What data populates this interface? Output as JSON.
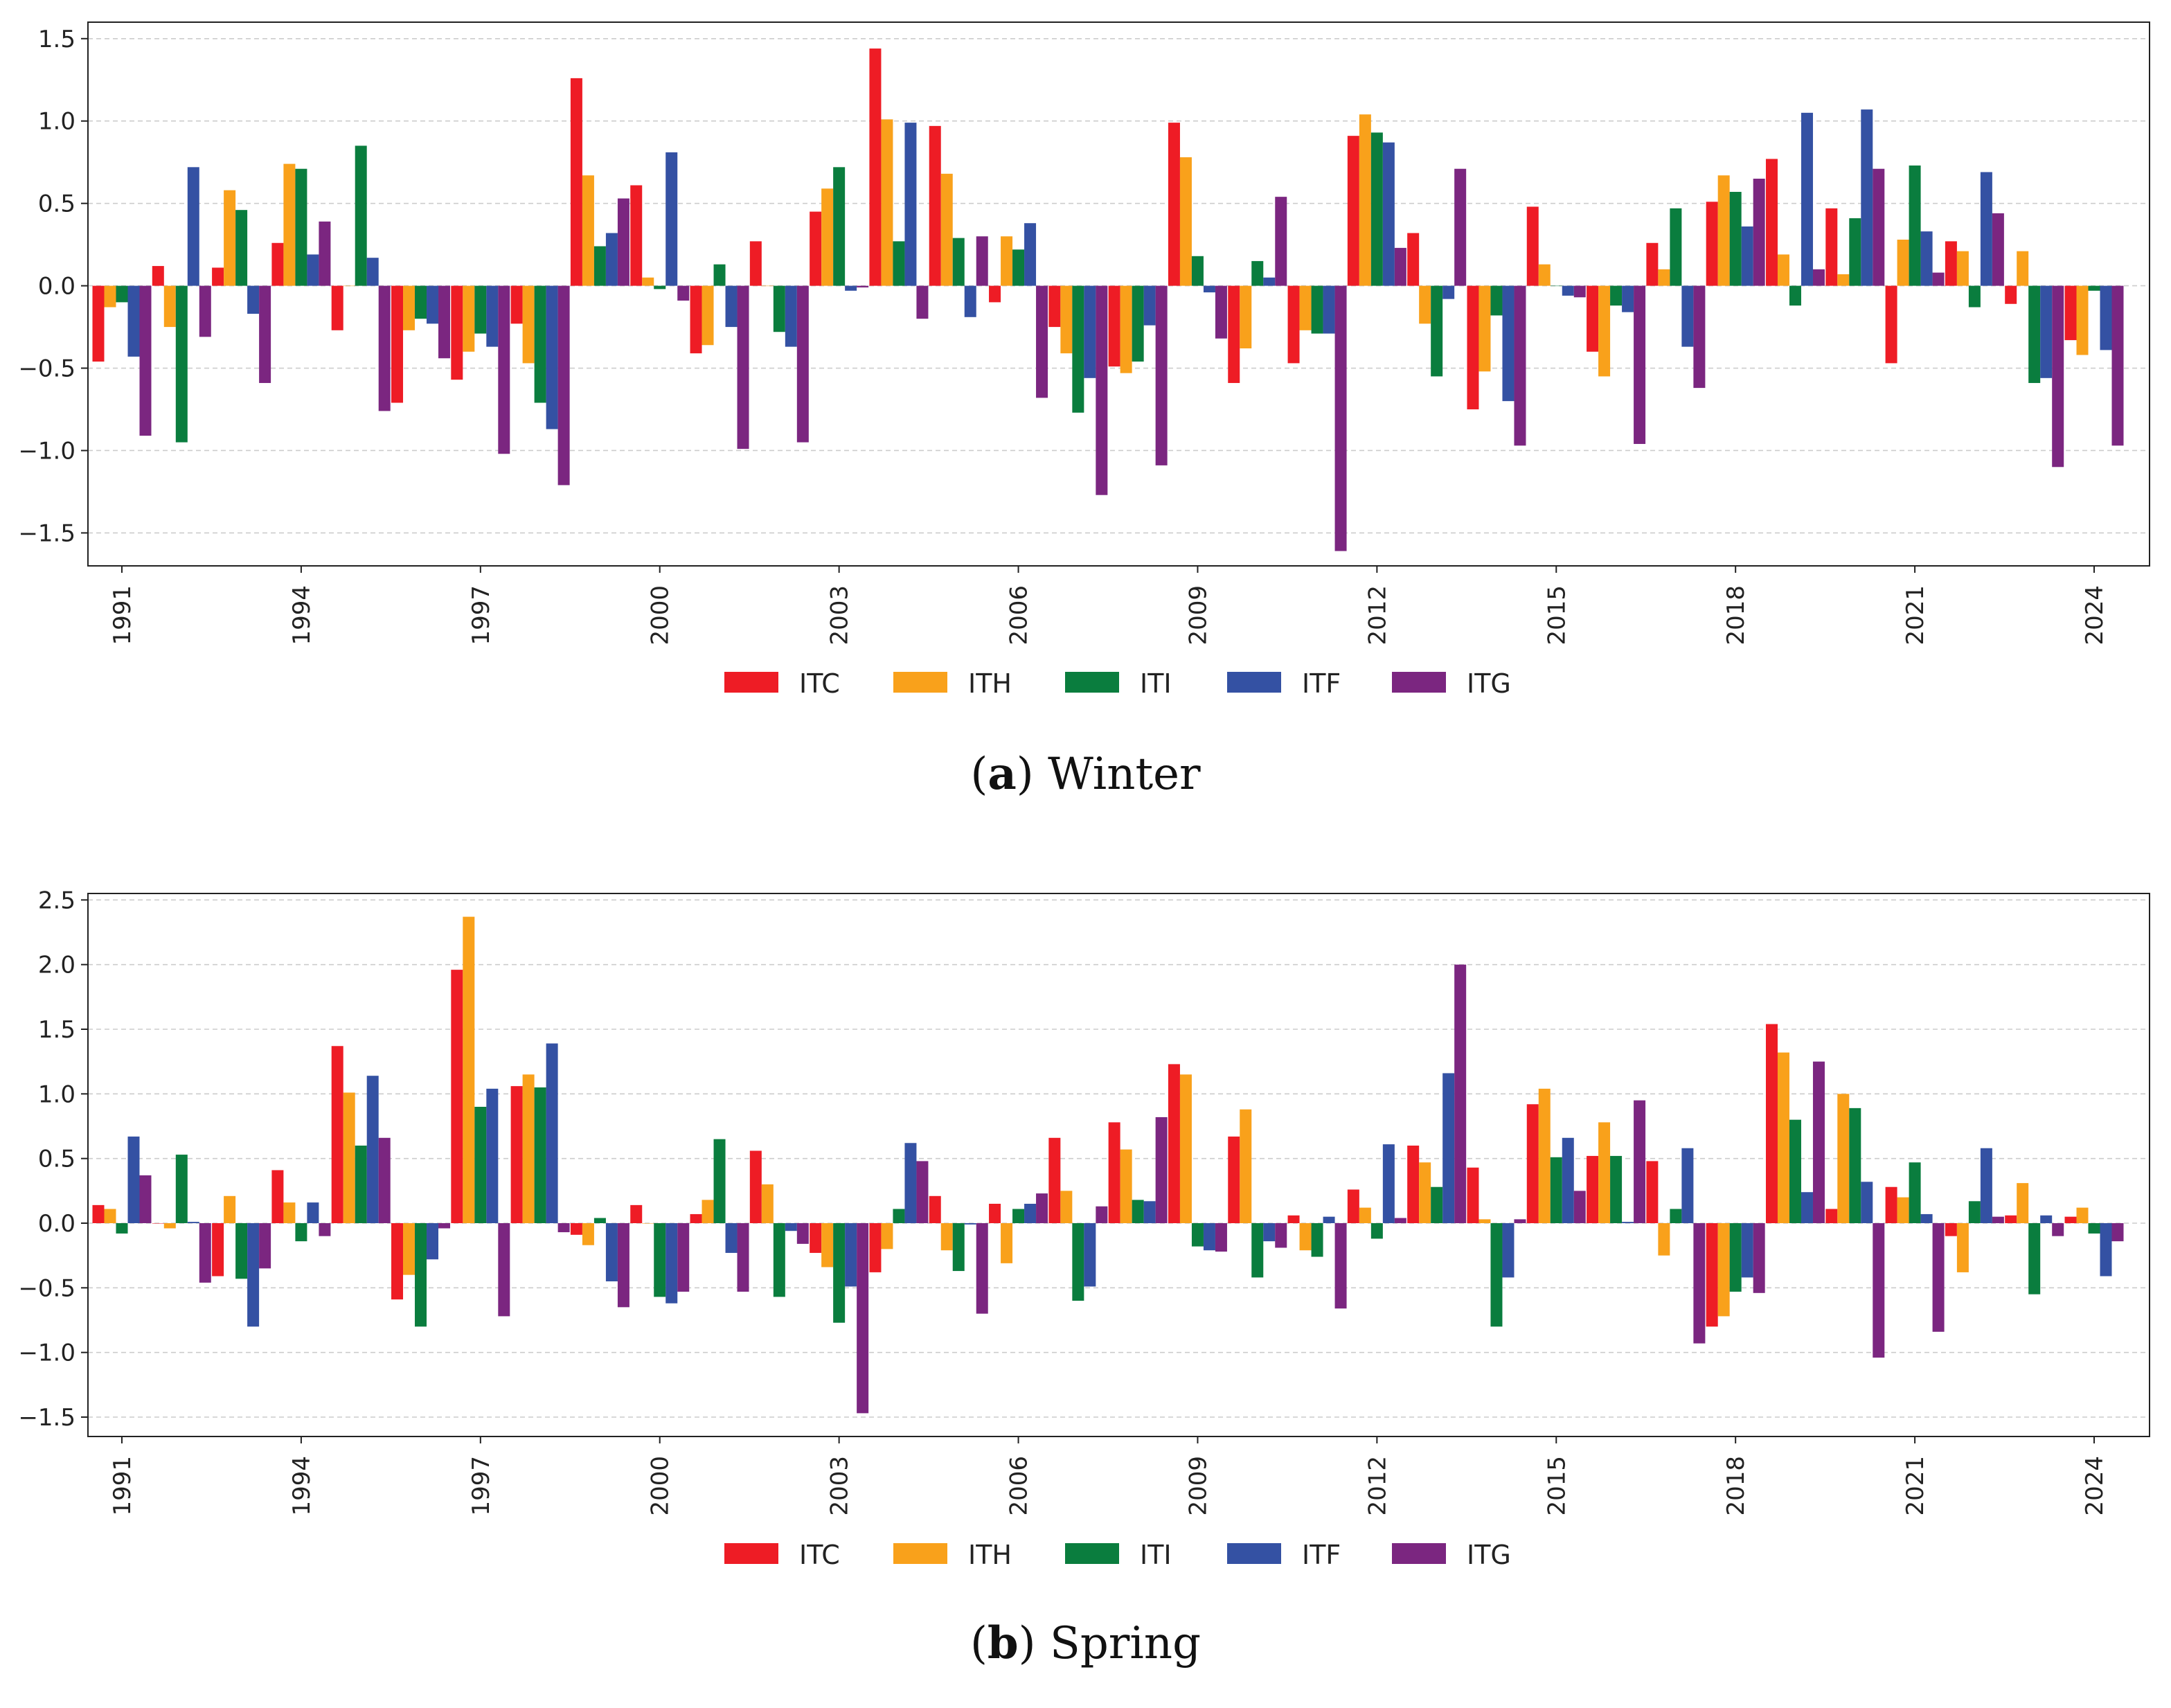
{
  "chart_data": [
    {
      "type": "bar",
      "panel_label": "a",
      "caption": "Winter",
      "ylim": [
        -1.7,
        1.6
      ],
      "yticks": [
        -1.5,
        -1.0,
        -0.5,
        0.0,
        0.5,
        1.0,
        1.5
      ],
      "ytick_labels": [
        "−1.5",
        "−1.0",
        "−0.5",
        "0.0",
        "0.5",
        "1.0",
        "1.5"
      ],
      "grid": "y-dashed",
      "legend_position": "bottom-center",
      "categories": [
        "1991",
        "1992",
        "1993",
        "1994",
        "1995",
        "1996",
        "1997",
        "1998",
        "1999",
        "2000",
        "2001",
        "2002",
        "2003",
        "2004",
        "2005",
        "2006",
        "2007",
        "2008",
        "2009",
        "2010",
        "2011",
        "2012",
        "2013",
        "2014",
        "2015",
        "2016",
        "2017",
        "2018",
        "2019",
        "2020",
        "2021",
        "2022",
        "2023",
        "2024"
      ],
      "xtick_labels": [
        "1991",
        "1994",
        "1997",
        "2000",
        "2003",
        "2006",
        "2009",
        "2012",
        "2015",
        "2018",
        "2021",
        "2024"
      ],
      "xtick_indices": [
        0,
        3,
        6,
        9,
        12,
        15,
        18,
        21,
        24,
        27,
        30,
        33
      ],
      "series": [
        {
          "name": "ITC",
          "color": "#ee1c25",
          "values": [
            -0.46,
            0.12,
            0.11,
            0.26,
            -0.27,
            -0.71,
            -0.57,
            -0.23,
            1.26,
            0.61,
            -0.41,
            0.27,
            0.45,
            1.44,
            0.97,
            -0.1,
            -0.25,
            -0.49,
            0.99,
            -0.59,
            -0.47,
            0.91,
            0.32,
            -0.75,
            0.48,
            -0.4,
            0.26,
            0.51,
            0.77,
            0.47,
            -0.47,
            0.27,
            -0.11,
            -0.33
          ]
        },
        {
          "name": "ITH",
          "color": "#f9a11b",
          "values": [
            -0.13,
            -0.25,
            0.58,
            0.74,
            0.0,
            -0.27,
            -0.4,
            -0.47,
            0.67,
            0.05,
            -0.36,
            0.0,
            0.59,
            1.01,
            0.68,
            0.3,
            -0.41,
            -0.53,
            0.78,
            -0.38,
            -0.27,
            1.04,
            -0.23,
            -0.52,
            0.13,
            -0.55,
            0.1,
            0.67,
            0.19,
            0.07,
            0.28,
            0.21,
            0.21,
            -0.42
          ]
        },
        {
          "name": "ITI",
          "color": "#0a7d3e",
          "values": [
            -0.1,
            -0.95,
            0.46,
            0.71,
            0.85,
            -0.2,
            -0.29,
            -0.71,
            0.24,
            -0.02,
            0.13,
            -0.28,
            0.72,
            0.27,
            0.29,
            0.22,
            -0.77,
            -0.46,
            0.18,
            0.15,
            -0.29,
            0.93,
            -0.55,
            -0.18,
            0.0,
            -0.12,
            0.47,
            0.57,
            -0.12,
            0.41,
            0.73,
            -0.13,
            -0.59,
            -0.03
          ]
        },
        {
          "name": "ITF",
          "color": "#3451a3",
          "values": [
            -0.43,
            0.72,
            -0.17,
            0.19,
            0.17,
            -0.23,
            -0.37,
            -0.87,
            0.32,
            0.81,
            -0.25,
            -0.37,
            -0.03,
            0.99,
            -0.19,
            0.38,
            -0.56,
            -0.24,
            -0.04,
            0.05,
            -0.29,
            0.87,
            -0.08,
            -0.7,
            -0.06,
            -0.16,
            -0.37,
            0.36,
            1.05,
            1.07,
            0.33,
            0.69,
            -0.56,
            -0.39
          ]
        },
        {
          "name": "ITG",
          "color": "#7b2680",
          "values": [
            -0.91,
            -0.31,
            -0.59,
            0.39,
            -0.76,
            -0.44,
            -1.02,
            -1.21,
            0.53,
            -0.09,
            -0.99,
            -0.95,
            -0.01,
            -0.2,
            0.3,
            -0.68,
            -1.27,
            -1.09,
            -0.32,
            0.54,
            -1.61,
            0.23,
            0.71,
            -0.97,
            -0.07,
            -0.96,
            -0.62,
            0.65,
            0.1,
            0.71,
            0.08,
            0.44,
            -1.1,
            -0.97
          ]
        }
      ]
    },
    {
      "type": "bar",
      "panel_label": "b",
      "caption": "Spring",
      "ylim": [
        -1.65,
        2.55
      ],
      "yticks": [
        -1.5,
        -1.0,
        -0.5,
        0.0,
        0.5,
        1.0,
        1.5,
        2.0,
        2.5
      ],
      "ytick_labels": [
        "−1.5",
        "−1.0",
        "−0.5",
        "0.0",
        "0.5",
        "1.0",
        "1.5",
        "2.0",
        "2.5"
      ],
      "grid": "y-dashed",
      "legend_position": "bottom-center",
      "categories": [
        "1991",
        "1992",
        "1993",
        "1994",
        "1995",
        "1996",
        "1997",
        "1998",
        "1999",
        "2000",
        "2001",
        "2002",
        "2003",
        "2004",
        "2005",
        "2006",
        "2007",
        "2008",
        "2009",
        "2010",
        "2011",
        "2012",
        "2013",
        "2014",
        "2015",
        "2016",
        "2017",
        "2018",
        "2019",
        "2020",
        "2021",
        "2022",
        "2023",
        "2024"
      ],
      "xtick_labels": [
        "1991",
        "1994",
        "1997",
        "2000",
        "2003",
        "2006",
        "2009",
        "2012",
        "2015",
        "2018",
        "2021",
        "2024"
      ],
      "xtick_indices": [
        0,
        3,
        6,
        9,
        12,
        15,
        18,
        21,
        24,
        27,
        30,
        33
      ],
      "series": [
        {
          "name": "ITC",
          "color": "#ee1c25",
          "values": [
            0.14,
            0.0,
            -0.41,
            0.41,
            1.37,
            -0.59,
            1.96,
            1.06,
            -0.09,
            0.14,
            0.07,
            0.56,
            -0.23,
            -0.38,
            0.21,
            0.15,
            0.66,
            0.78,
            1.23,
            0.67,
            0.06,
            0.26,
            0.6,
            0.43,
            0.92,
            0.52,
            0.48,
            -0.8,
            1.54,
            0.11,
            0.28,
            -0.1,
            0.06,
            0.05
          ]
        },
        {
          "name": "ITH",
          "color": "#f9a11b",
          "values": [
            0.11,
            -0.04,
            0.21,
            0.16,
            1.01,
            -0.4,
            2.37,
            1.15,
            -0.17,
            0.0,
            0.18,
            0.3,
            -0.34,
            -0.2,
            -0.21,
            -0.31,
            0.25,
            0.57,
            1.15,
            0.88,
            -0.21,
            0.12,
            0.47,
            0.03,
            1.04,
            0.78,
            -0.25,
            -0.72,
            1.32,
            1.0,
            0.2,
            -0.38,
            0.31,
            0.12
          ]
        },
        {
          "name": "ITI",
          "color": "#0a7d3e",
          "values": [
            -0.08,
            0.53,
            -0.43,
            -0.14,
            0.6,
            -0.8,
            0.9,
            1.05,
            0.04,
            -0.57,
            0.65,
            -0.57,
            -0.77,
            0.11,
            -0.37,
            0.11,
            -0.6,
            0.18,
            -0.18,
            -0.42,
            -0.26,
            -0.12,
            0.28,
            -0.8,
            0.51,
            0.52,
            0.11,
            -0.53,
            0.8,
            0.89,
            0.47,
            0.17,
            -0.55,
            -0.08
          ]
        },
        {
          "name": "ITF",
          "color": "#3451a3",
          "values": [
            0.67,
            0.01,
            -0.8,
            0.16,
            1.14,
            -0.28,
            1.04,
            1.39,
            -0.45,
            -0.62,
            -0.23,
            -0.06,
            -0.49,
            0.62,
            -0.01,
            0.15,
            -0.49,
            0.17,
            -0.21,
            -0.14,
            0.05,
            0.61,
            1.16,
            -0.42,
            0.66,
            0.01,
            0.58,
            -0.42,
            0.24,
            0.32,
            0.07,
            0.58,
            0.06,
            -0.41
          ]
        },
        {
          "name": "ITG",
          "color": "#7b2680",
          "values": [
            0.37,
            -0.46,
            -0.35,
            -0.1,
            0.66,
            -0.04,
            -0.72,
            -0.07,
            -0.65,
            -0.53,
            -0.53,
            -0.16,
            -1.47,
            0.48,
            -0.7,
            0.23,
            0.13,
            0.82,
            -0.22,
            -0.19,
            -0.66,
            0.04,
            2.0,
            0.03,
            0.25,
            0.95,
            -0.93,
            -0.54,
            1.25,
            -1.04,
            -0.84,
            0.05,
            -0.1,
            -0.14
          ]
        }
      ]
    }
  ]
}
